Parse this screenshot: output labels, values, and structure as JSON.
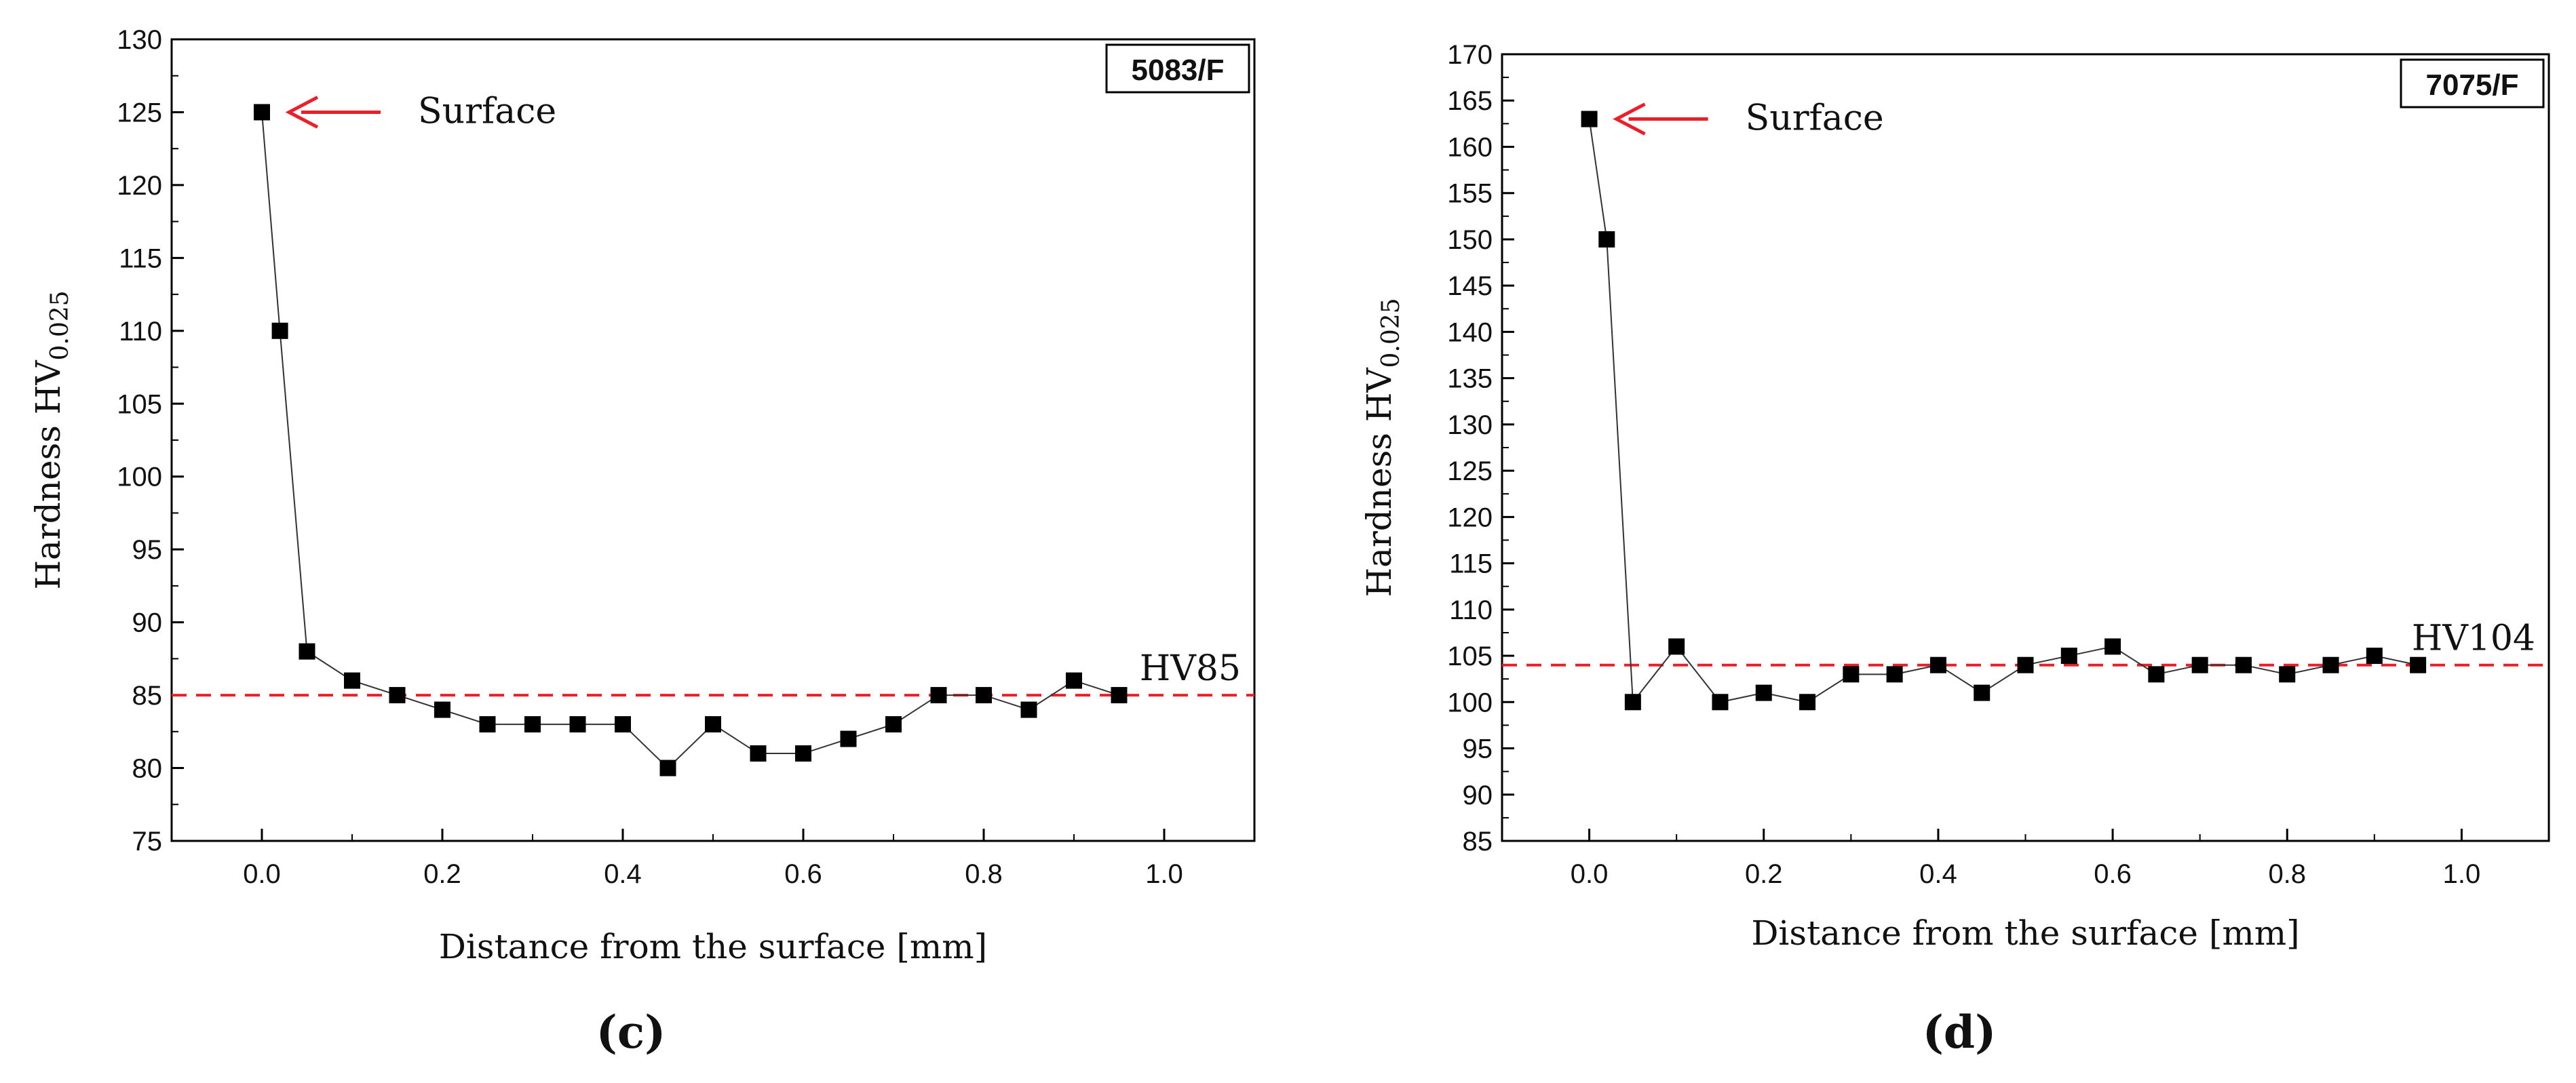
{
  "chart_data": [
    {
      "type": "scatter",
      "panel_label": "(c)",
      "material_badge": "5083/F",
      "xlabel": "Distance from the surface [mm]",
      "ylabel_main": "Hardness HV",
      "ylabel_sub": "0.025",
      "xlim": [
        -0.1,
        1.1
      ],
      "ylim": [
        75,
        130
      ],
      "xticks": [
        0.0,
        0.2,
        0.4,
        0.6,
        0.8,
        1.0
      ],
      "xtick_labels": [
        "0.0",
        "0.2",
        "0.4",
        "0.6",
        "0.8",
        "1.0"
      ],
      "yticks": [
        75,
        80,
        85,
        90,
        95,
        100,
        105,
        110,
        115,
        120,
        125,
        130
      ],
      "ytick_labels": [
        "75",
        "80",
        "85",
        "90",
        "95",
        "100",
        "105",
        "110",
        "115",
        "120",
        "125",
        "130"
      ],
      "series": [
        {
          "marker": "square",
          "color": "#000000",
          "x": [
            0.0,
            0.02,
            0.05,
            0.1,
            0.15,
            0.2,
            0.25,
            0.3,
            0.35,
            0.4,
            0.45,
            0.5,
            0.55,
            0.6,
            0.65,
            0.7,
            0.75,
            0.8,
            0.85,
            0.9,
            0.95
          ],
          "y": [
            125,
            110,
            88,
            86,
            85,
            84,
            83,
            83,
            83,
            83,
            80,
            83,
            81,
            81,
            82,
            83,
            85,
            85,
            84,
            86,
            85
          ]
        }
      ],
      "reference_line": {
        "y": 85,
        "label": "HV85",
        "color": "#e8202a"
      },
      "surface_annotation": {
        "text": "Surface",
        "x": 0.0,
        "y": 125,
        "arrow_color": "#e8202a"
      },
      "grid": false
    },
    {
      "type": "scatter",
      "panel_label": "(d)",
      "material_badge": "7075/F",
      "xlabel": "Distance from the surface [mm]",
      "ylabel_main": "Hardness HV",
      "ylabel_sub": "0.025",
      "xlim": [
        -0.1,
        1.1
      ],
      "ylim": [
        85,
        170
      ],
      "xticks": [
        0.0,
        0.2,
        0.4,
        0.6,
        0.8,
        1.0
      ],
      "xtick_labels": [
        "0.0",
        "0.2",
        "0.4",
        "0.6",
        "0.8",
        "1.0"
      ],
      "yticks": [
        85,
        90,
        95,
        100,
        105,
        110,
        115,
        120,
        125,
        130,
        135,
        140,
        145,
        150,
        155,
        160,
        165,
        170
      ],
      "ytick_labels": [
        "85",
        "90",
        "95",
        "100",
        "105",
        "110",
        "115",
        "120",
        "125",
        "130",
        "135",
        "140",
        "145",
        "150",
        "155",
        "160",
        "165",
        "170"
      ],
      "series": [
        {
          "marker": "square",
          "color": "#000000",
          "x": [
            0.0,
            0.02,
            0.05,
            0.1,
            0.15,
            0.2,
            0.25,
            0.3,
            0.35,
            0.4,
            0.45,
            0.5,
            0.55,
            0.6,
            0.65,
            0.7,
            0.75,
            0.8,
            0.85,
            0.9,
            0.95
          ],
          "y": [
            163,
            150,
            100,
            106,
            100,
            101,
            100,
            103,
            103,
            104,
            101,
            104,
            105,
            106,
            103,
            104,
            104,
            103,
            104,
            105,
            104
          ]
        }
      ],
      "reference_line": {
        "y": 104,
        "label": "HV104",
        "color": "#e8202a"
      },
      "surface_annotation": {
        "text": "Surface",
        "x": 0.0,
        "y": 163,
        "arrow_color": "#e8202a"
      },
      "grid": false
    }
  ]
}
